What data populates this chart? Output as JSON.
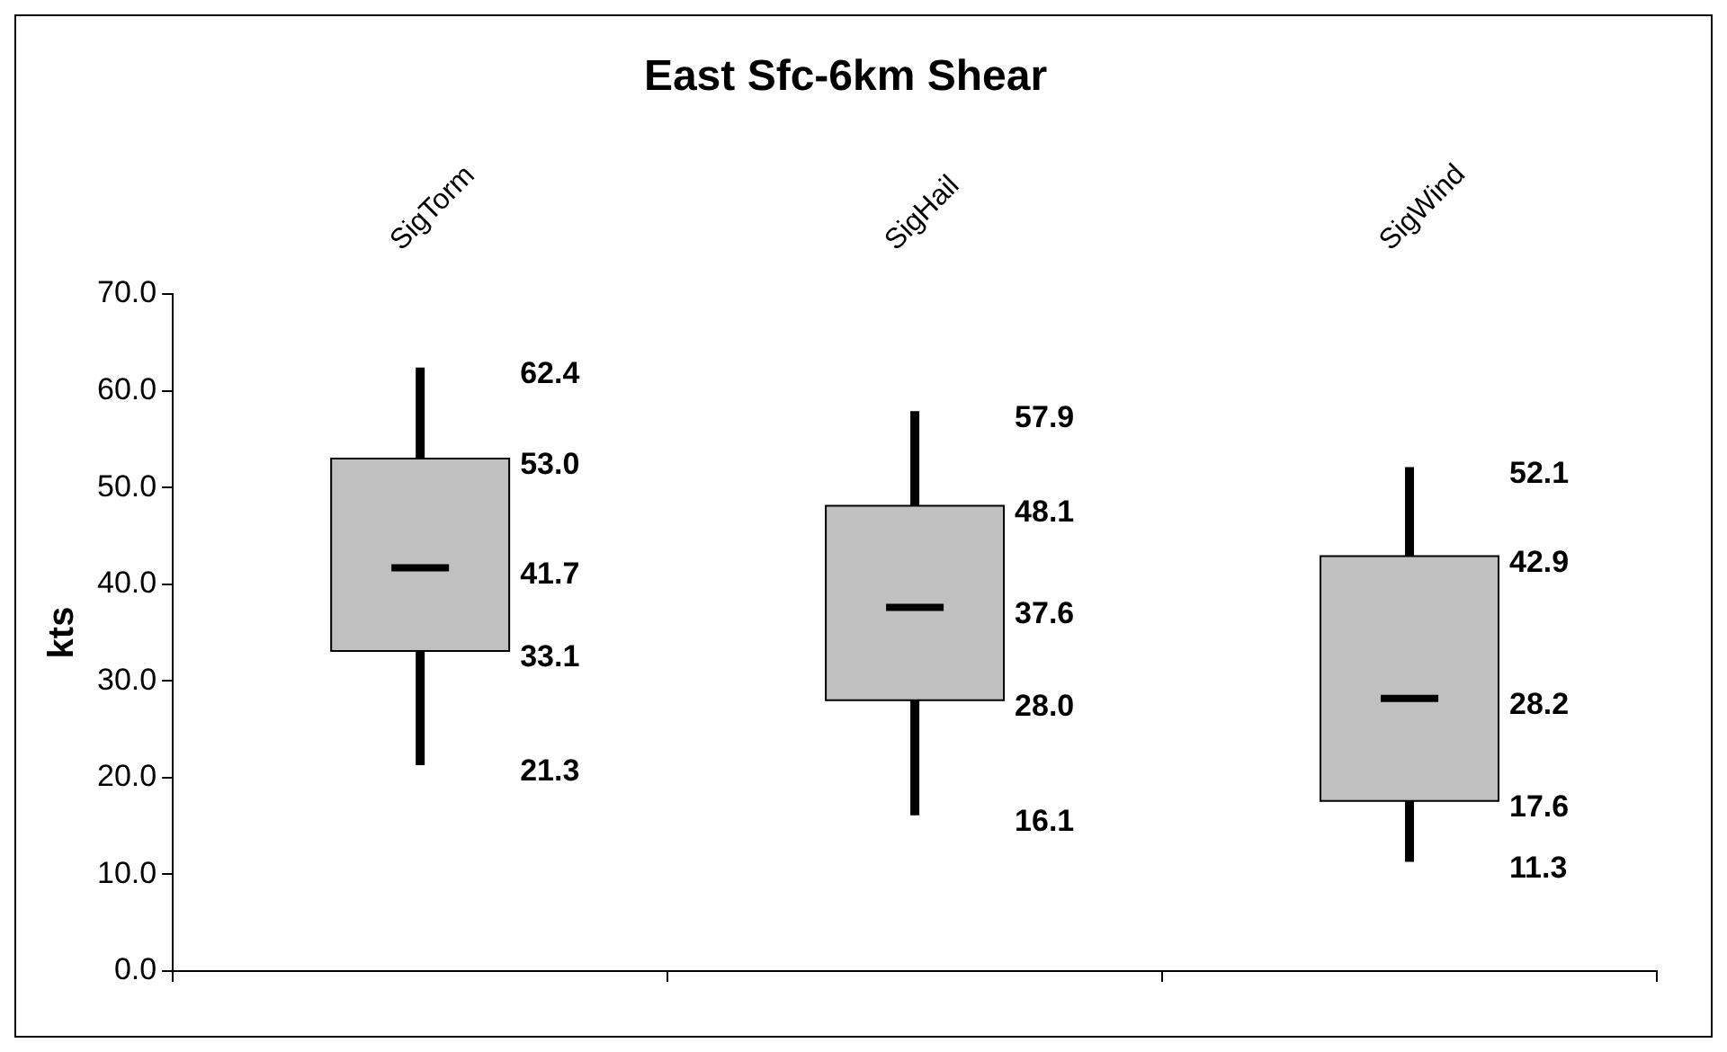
{
  "chart_data": {
    "type": "box",
    "title": "East Sfc-6km Shear",
    "ylabel": "kts",
    "categories": [
      "SigTorm",
      "SigHail",
      "SigWind"
    ],
    "boxes": [
      {
        "low": 21.3,
        "q1": 33.1,
        "median": 41.7,
        "q3": 53.0,
        "high": 62.4
      },
      {
        "low": 16.1,
        "q1": 28.0,
        "median": 37.6,
        "q3": 48.1,
        "high": 57.9
      },
      {
        "low": 11.3,
        "q1": 17.6,
        "median": 28.2,
        "q3": 42.9,
        "high": 52.1
      }
    ],
    "color": "#c0c0c0",
    "grid": false,
    "legend": false,
    "ylim": [
      0,
      70
    ],
    "yticks": [
      {
        "value": 0,
        "label": "0.0"
      },
      {
        "value": 10,
        "label": "10.0"
      },
      {
        "value": 20,
        "label": "20.0"
      },
      {
        "value": 30,
        "label": "30.0"
      },
      {
        "value": 40,
        "label": "40.0"
      },
      {
        "value": 50,
        "label": "50.0"
      },
      {
        "value": 60,
        "label": "60.0"
      },
      {
        "value": 70,
        "label": "70.0"
      }
    ],
    "annotations": [
      {
        "text": "62.4",
        "x": "SigTorm",
        "y": 62.4
      },
      {
        "text": "53.0",
        "x": "SigTorm",
        "y": 53.0
      },
      {
        "text": "41.7",
        "x": "SigTorm",
        "y": 41.7
      },
      {
        "text": "33.1",
        "x": "SigTorm",
        "y": 33.1
      },
      {
        "text": "21.3",
        "x": "SigTorm",
        "y": 21.3
      },
      {
        "text": "57.9",
        "x": "SigHail",
        "y": 57.9
      },
      {
        "text": "48.1",
        "x": "SigHail",
        "y": 48.1
      },
      {
        "text": "37.6",
        "x": "SigHail",
        "y": 37.6
      },
      {
        "text": "28.0",
        "x": "SigHail",
        "y": 28.0
      },
      {
        "text": "16.1",
        "x": "SigHail",
        "y": 16.1
      },
      {
        "text": "52.1",
        "x": "SigWind",
        "y": 52.1
      },
      {
        "text": "42.9",
        "x": "SigWind",
        "y": 42.9
      },
      {
        "text": "28.2",
        "x": "SigWind",
        "y": 28.2
      },
      {
        "text": "17.6",
        "x": "SigWind",
        "y": 17.6
      },
      {
        "text": "11.3",
        "x": "SigWind",
        "y": 11.3
      }
    ]
  }
}
